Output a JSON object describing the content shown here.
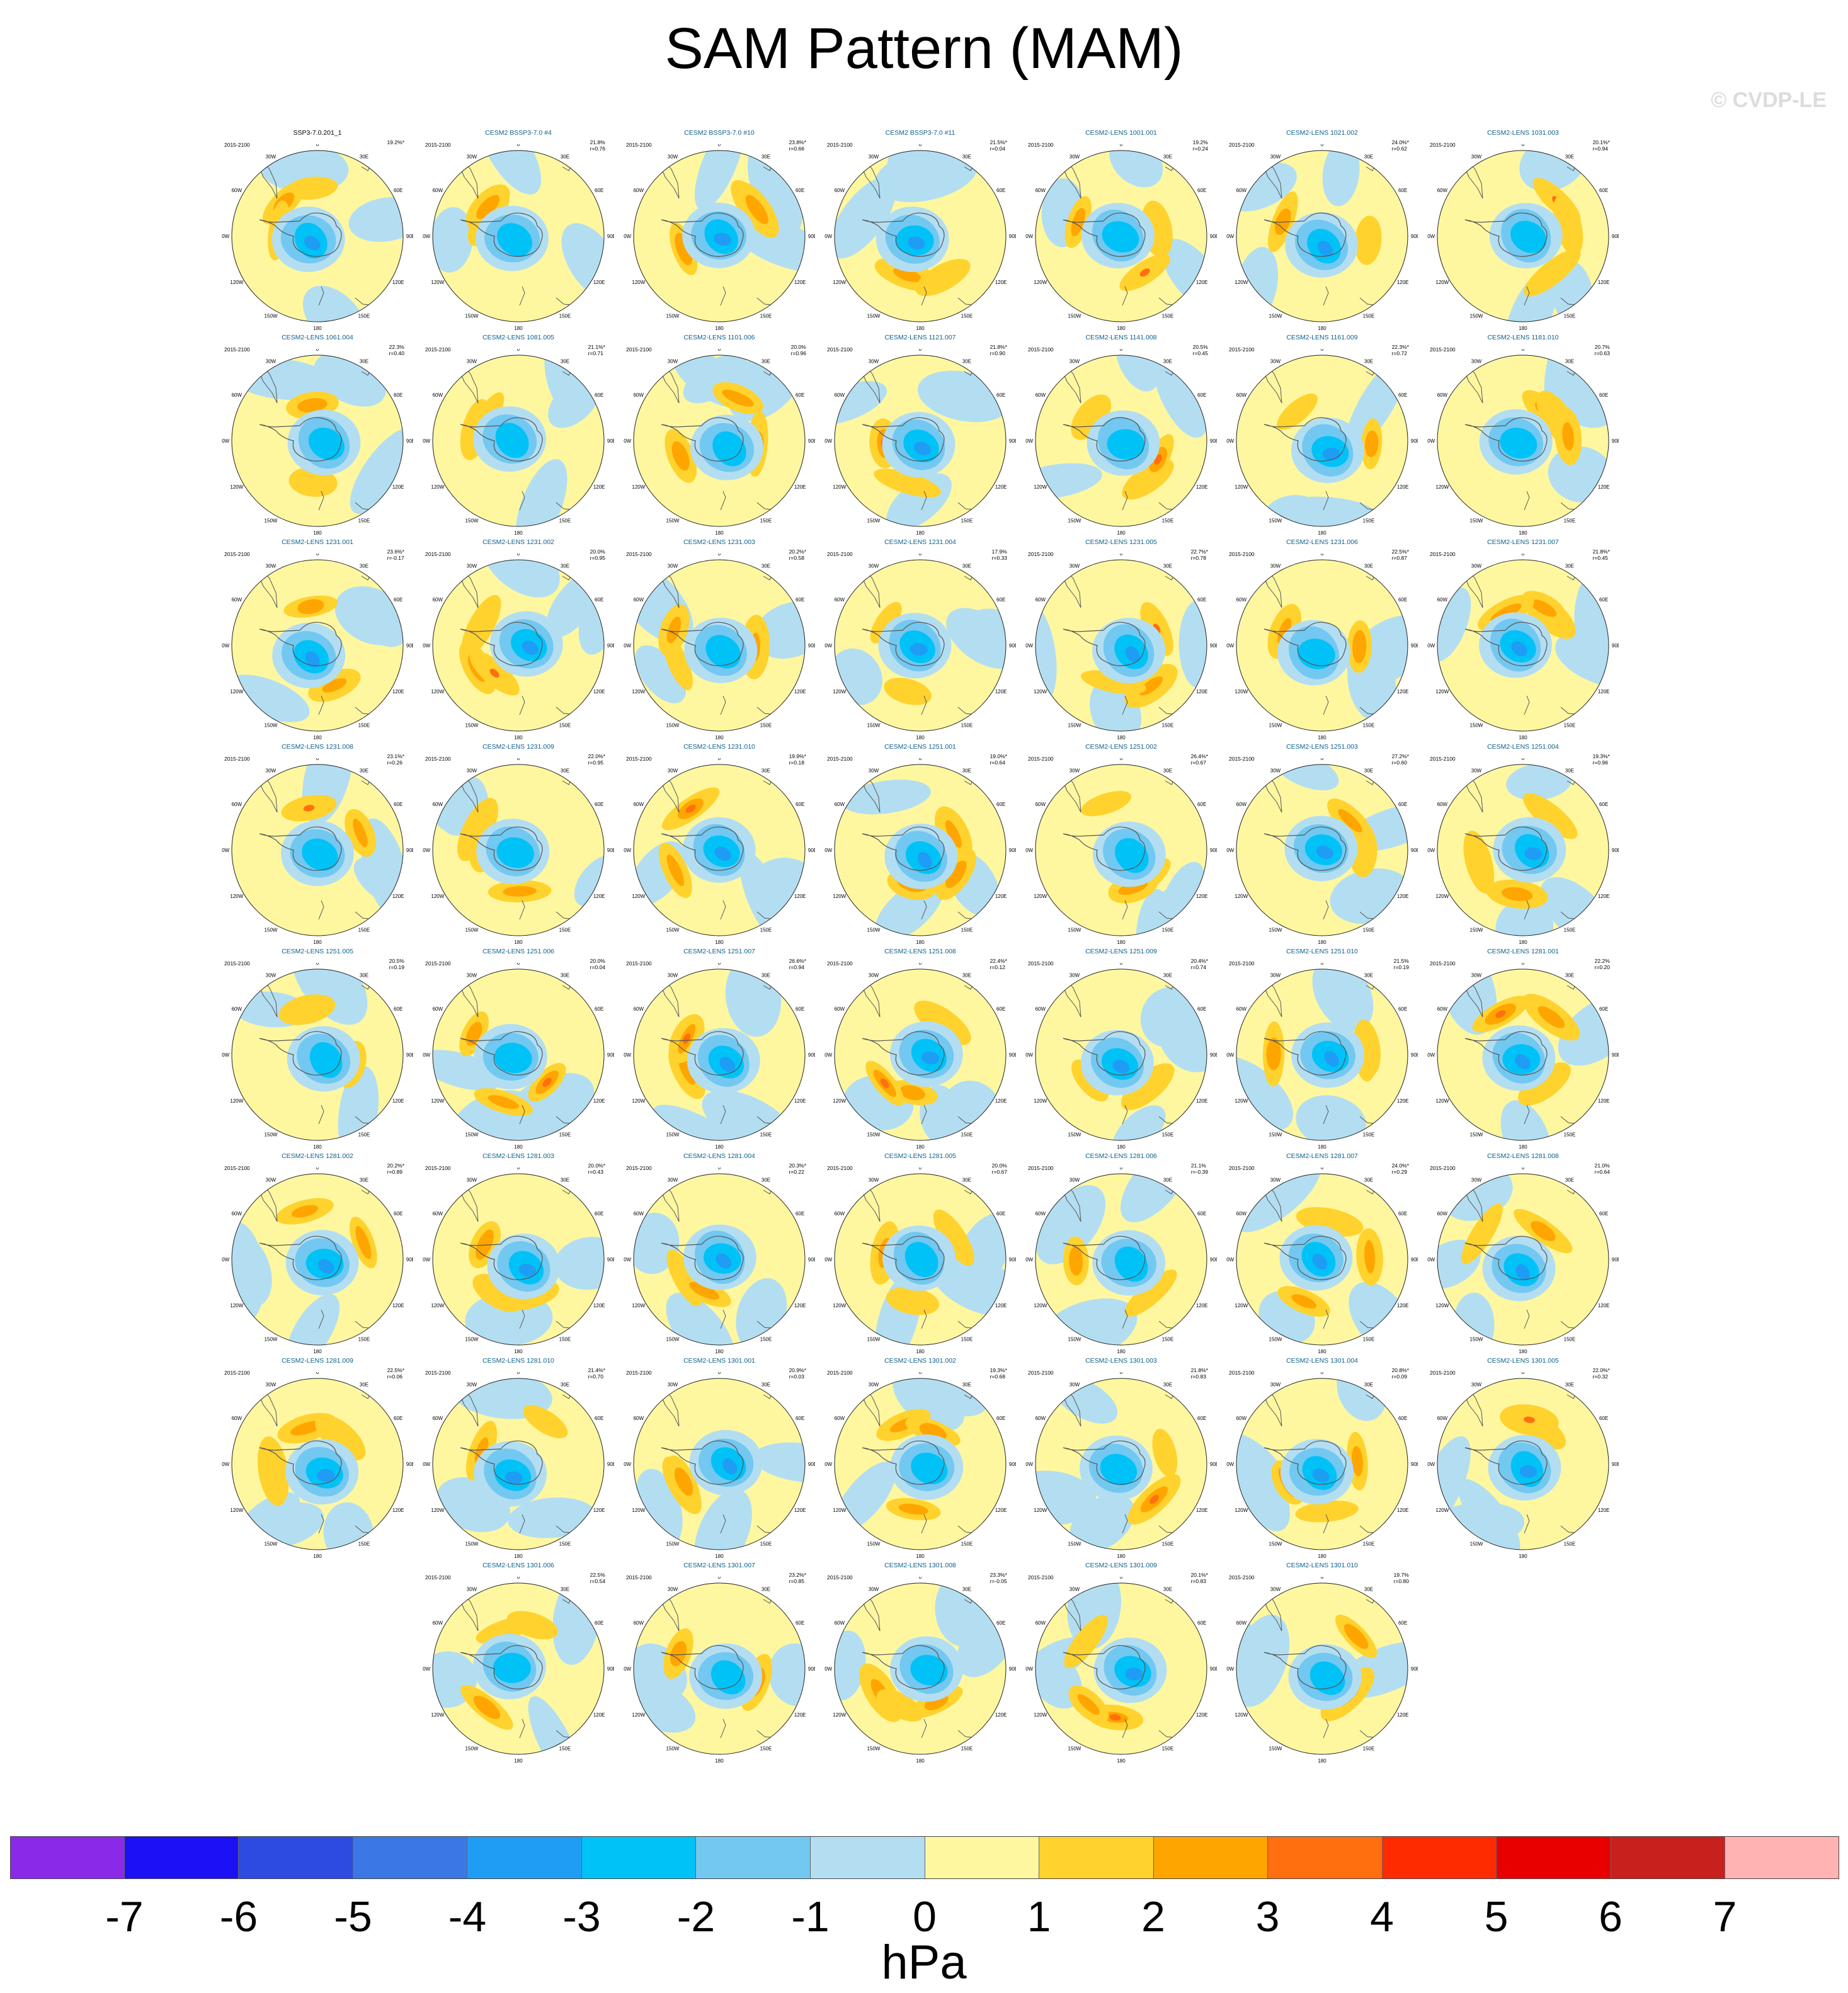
{
  "title": "SAM Pattern (MAM)",
  "watermark": "© CVDP-LE",
  "colorbar": {
    "units": "hPa",
    "labels": [
      "-7",
      "-6",
      "-5",
      "-4",
      "-3",
      "-2",
      "-1",
      "0",
      "1",
      "2",
      "3",
      "4",
      "5",
      "6",
      "7"
    ],
    "colors": [
      "#8a2ae8",
      "#1c10f5",
      "#2d4be0",
      "#3b78e6",
      "#1f9cf4",
      "#00c2f7",
      "#72c8f0",
      "#b3def2",
      "#fff7a0",
      "#ffd22e",
      "#ffa500",
      "#ff6f0f",
      "#ff2b00",
      "#e80000",
      "#c8201d",
      "#ffb3b3"
    ]
  },
  "map_colors": {
    "ocean_light": "#b3def2",
    "neg1": "#72c8f0",
    "neg2": "#00c2f7",
    "neg3": "#1f9cf4",
    "pos0": "#fff7a0",
    "pos1": "#ffd22e",
    "pos2": "#ffa500",
    "pos3": "#ff6f0f",
    "pos4": "#ff2b00"
  },
  "map_axis_labels": {
    "top": "0",
    "top_left": "30W",
    "top_right": "30E",
    "upper_left": "60W",
    "upper_right": "60E",
    "left": "90W",
    "right": "90E",
    "lower_left": "120W",
    "lower_right": "120E",
    "bottom_left": "150W",
    "bottom_right": "150E",
    "bottom": "180"
  },
  "panels": [
    {
      "title": "SSP3-7.0.201_1",
      "years": "2015-2100",
      "pct": "19.2%*",
      "r": ""
    },
    {
      "title": "CESM2 BSSP3-7.0 #4",
      "years": "2015-2100",
      "pct": "21.8%",
      "r": "r=0.76"
    },
    {
      "title": "CESM2 BSSP3-7.0 #10",
      "years": "2015-2100",
      "pct": "23.8%*",
      "r": "r=0.66"
    },
    {
      "title": "CESM2 BSSP3-7.0 #11",
      "years": "2015-2100",
      "pct": "21.5%*",
      "r": "r=0.04"
    },
    {
      "title": "CESM2-LENS 1001.001",
      "years": "2015-2100",
      "pct": "19.2%",
      "r": "r=0.24"
    },
    {
      "title": "CESM2-LENS 1021.002",
      "years": "2015-2100",
      "pct": "24.0%*",
      "r": "r=0.62"
    },
    {
      "title": "CESM2-LENS 1031.003",
      "years": "2015-2100",
      "pct": "20.1%*",
      "r": "r=0.94"
    },
    {
      "title": "CESM2-LENS 1061.004",
      "years": "2015-2100",
      "pct": "22.3%",
      "r": "r=0.40"
    },
    {
      "title": "CESM2-LENS 1081.005",
      "years": "2015-2100",
      "pct": "21.1%*",
      "r": "r=0.71"
    },
    {
      "title": "CESM2-LENS 1101.006",
      "years": "2015-2100",
      "pct": "20.0%",
      "r": "r=0.96"
    },
    {
      "title": "CESM2-LENS 1121.007",
      "years": "2015-2100",
      "pct": "21.8%*",
      "r": "r=0.90"
    },
    {
      "title": "CESM2-LENS 1141.008",
      "years": "2015-2100",
      "pct": "20.5%",
      "r": "r=0.45"
    },
    {
      "title": "CESM2-LENS 1161.009",
      "years": "2015-2100",
      "pct": "22.3%*",
      "r": "r=0.72"
    },
    {
      "title": "CESM2-LENS 1181.010",
      "years": "2015-2100",
      "pct": "20.7%",
      "r": "r=0.63"
    },
    {
      "title": "CESM2-LENS 1231.001",
      "years": "2015-2100",
      "pct": "23.6%*",
      "r": "r=-0.17"
    },
    {
      "title": "CESM2-LENS 1231.002",
      "years": "2015-2100",
      "pct": "20.0%",
      "r": "r=0.95"
    },
    {
      "title": "CESM2-LENS 1231.003",
      "years": "2015-2100",
      "pct": "20.2%*",
      "r": "r=0.58"
    },
    {
      "title": "CESM2-LENS 1231.004",
      "years": "2015-2100",
      "pct": "17.9%",
      "r": "r=0.33"
    },
    {
      "title": "CESM2-LENS 1231.005",
      "years": "2015-2100",
      "pct": "22.7%*",
      "r": "r=0.78"
    },
    {
      "title": "CESM2-LENS 1231.006",
      "years": "2015-2100",
      "pct": "22.5%*",
      "r": "r=0.87"
    },
    {
      "title": "CESM2-LENS 1231.007",
      "years": "2015-2100",
      "pct": "21.8%*",
      "r": "r=0.45"
    },
    {
      "title": "CESM2-LENS 1231.008",
      "years": "2015-2100",
      "pct": "23.1%*",
      "r": "r=0.26"
    },
    {
      "title": "CESM2-LENS 1231.009",
      "years": "2015-2100",
      "pct": "22.0%*",
      "r": "r=0.95"
    },
    {
      "title": "CESM2-LENS 1231.010",
      "years": "2015-2100",
      "pct": "19.9%*",
      "r": "r=0.18"
    },
    {
      "title": "CESM2-LENS 1251.001",
      "years": "2015-2100",
      "pct": "19.0%*",
      "r": "r=0.64"
    },
    {
      "title": "CESM2-LENS 1251.002",
      "years": "2015-2100",
      "pct": "26.4%*",
      "r": "r=0.67"
    },
    {
      "title": "CESM2-LENS 1251.003",
      "years": "2015-2100",
      "pct": "27.2%*",
      "r": "r=0.60"
    },
    {
      "title": "CESM2-LENS 1251.004",
      "years": "2015-2100",
      "pct": "19.3%*",
      "r": "r=0.96"
    },
    {
      "title": "CESM2-LENS 1251.005",
      "years": "2015-2100",
      "pct": "20.5%",
      "r": "r=0.19"
    },
    {
      "title": "CESM2-LENS 1251.006",
      "years": "2015-2100",
      "pct": "20.0%",
      "r": "r=0.04"
    },
    {
      "title": "CESM2-LENS 1251.007",
      "years": "2015-2100",
      "pct": "26.6%*",
      "r": "r=0.94"
    },
    {
      "title": "CESM2-LENS 1251.008",
      "years": "2015-2100",
      "pct": "22.4%*",
      "r": "r=0.12"
    },
    {
      "title": "CESM2-LENS 1251.009",
      "years": "2015-2100",
      "pct": "20.4%*",
      "r": "r=0.74"
    },
    {
      "title": "CESM2-LENS 1251.010",
      "years": "2015-2100",
      "pct": "21.5%",
      "r": "r=0.19"
    },
    {
      "title": "CESM2-LENS 1281.001",
      "years": "2015-2100",
      "pct": "22.2%",
      "r": "r=0.20"
    },
    {
      "title": "CESM2-LENS 1281.002",
      "years": "2015-2100",
      "pct": "20.2%*",
      "r": "r=0.89"
    },
    {
      "title": "CESM2-LENS 1281.003",
      "years": "2015-2100",
      "pct": "20.0%*",
      "r": "r=0.43"
    },
    {
      "title": "CESM2-LENS 1281.004",
      "years": "2015-2100",
      "pct": "20.3%*",
      "r": "r=0.22"
    },
    {
      "title": "CESM2-LENS 1281.005",
      "years": "2015-2100",
      "pct": "20.0%",
      "r": "r=0.67"
    },
    {
      "title": "CESM2-LENS 1281.006",
      "years": "2015-2100",
      "pct": "21.1%",
      "r": "r=-0.39"
    },
    {
      "title": "CESM2-LENS 1281.007",
      "years": "2015-2100",
      "pct": "24.0%*",
      "r": "r=0.29"
    },
    {
      "title": "CESM2-LENS 1281.008",
      "years": "2015-2100",
      "pct": "21.0%",
      "r": "r=0.64"
    },
    {
      "title": "CESM2-LENS 1281.009",
      "years": "2015-2100",
      "pct": "22.5%*",
      "r": "r=0.06"
    },
    {
      "title": "CESM2-LENS 1281.010",
      "years": "2015-2100",
      "pct": "21.4%*",
      "r": "r=0.70"
    },
    {
      "title": "CESM2-LENS 1301.001",
      "years": "2015-2100",
      "pct": "20.9%*",
      "r": "r=0.03"
    },
    {
      "title": "CESM2-LENS 1301.002",
      "years": "2015-2100",
      "pct": "19.3%*",
      "r": "r=0.68"
    },
    {
      "title": "CESM2-LENS 1301.003",
      "years": "2015-2100",
      "pct": "21.8%*",
      "r": "r=0.83"
    },
    {
      "title": "CESM2-LENS 1301.004",
      "years": "2015-2100",
      "pct": "20.8%*",
      "r": "r=0.09"
    },
    {
      "title": "CESM2-LENS 1301.005",
      "years": "2015-2100",
      "pct": "22.0%*",
      "r": "r=0.32"
    },
    {
      "title": "CESM2-LENS 1301.006",
      "years": "2015-2100",
      "pct": "22.5%",
      "r": "r=0.54"
    },
    {
      "title": "CESM2-LENS 1301.007",
      "years": "2015-2100",
      "pct": "23.2%*",
      "r": "r=0.85"
    },
    {
      "title": "CESM2-LENS 1301.008",
      "years": "2015-2100",
      "pct": "23.3%*",
      "r": "r=-0.05"
    },
    {
      "title": "CESM2-LENS 1301.009",
      "years": "2015-2100",
      "pct": "20.1%*",
      "r": "r=0.83"
    },
    {
      "title": "CESM2-LENS 1301.010",
      "years": "2015-2100",
      "pct": "19.7%",
      "r": "r=0.80"
    }
  ]
}
